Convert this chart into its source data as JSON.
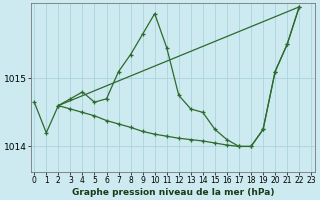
{
  "title": "Graphe pression niveau de la mer (hPa)",
  "background_color": "#cdeaf0",
  "line_color": "#2d6a2d",
  "grid_color": "#aad4dc",
  "ylim": [
    1013.62,
    1016.1
  ],
  "xlim": [
    -0.3,
    23.3
  ],
  "yticks": [
    1014,
    1015
  ],
  "xticks": [
    0,
    1,
    2,
    3,
    4,
    5,
    6,
    7,
    8,
    9,
    10,
    11,
    12,
    13,
    14,
    15,
    16,
    17,
    18,
    19,
    20,
    21,
    22,
    23
  ],
  "series1_x": [
    0,
    1,
    2,
    3,
    4,
    5,
    6,
    7,
    8,
    9,
    10,
    11,
    12,
    13,
    14,
    15,
    16,
    17,
    18,
    19,
    20,
    21,
    22
  ],
  "series1_y": [
    1014.65,
    1014.2,
    1014.6,
    1014.7,
    1014.8,
    1014.65,
    1014.7,
    1015.1,
    1015.35,
    1015.65,
    1015.95,
    1015.45,
    1014.75,
    1014.55,
    1014.5,
    1014.25,
    1014.1,
    1014.0,
    1014.0,
    1014.25,
    1015.1,
    1015.5,
    1016.05
  ],
  "series2_x": [
    2,
    3,
    4,
    5,
    6,
    7,
    8,
    9,
    10,
    11,
    12,
    13,
    14,
    15,
    16,
    17,
    18,
    19,
    20,
    21,
    22
  ],
  "series2_y": [
    1014.6,
    1014.55,
    1014.5,
    1014.45,
    1014.38,
    1014.33,
    1014.28,
    1014.22,
    1014.18,
    1014.15,
    1014.12,
    1014.1,
    1014.08,
    1014.05,
    1014.02,
    1014.0,
    1014.0,
    1014.25,
    1015.1,
    1015.5,
    1016.05
  ],
  "series3_x": [
    2,
    22
  ],
  "series3_y": [
    1014.6,
    1016.05
  ],
  "ylabel_1014": 1014,
  "ylabel_1015": 1015
}
